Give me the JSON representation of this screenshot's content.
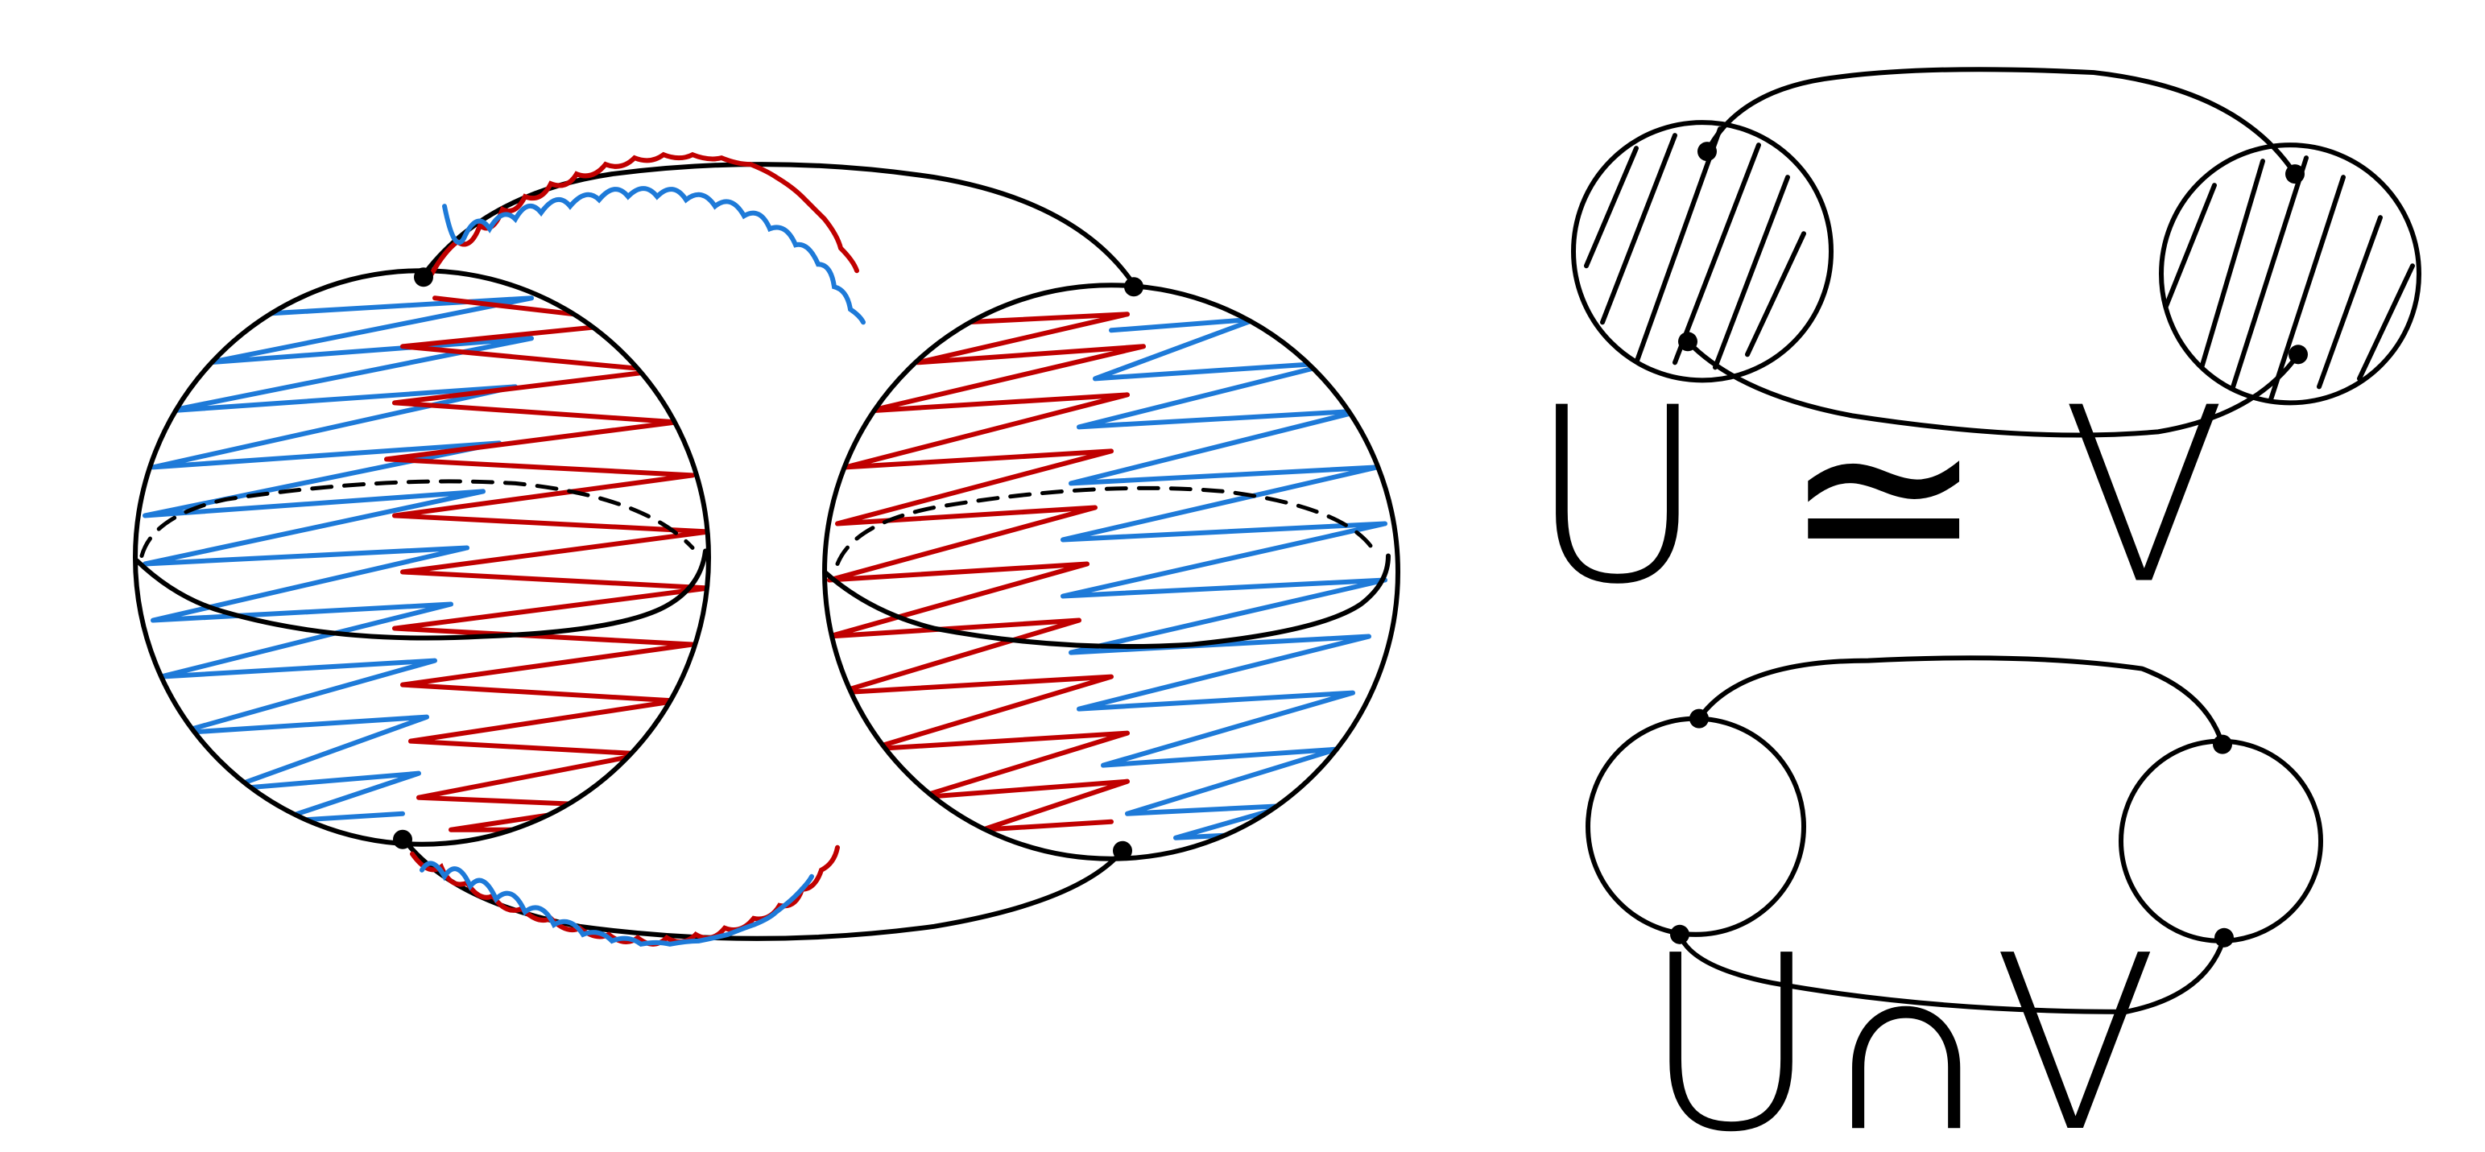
{
  "labels": {
    "homotopy_equivalence": "U ≃ V",
    "intersection": "U∩V"
  },
  "colors": {
    "ink": "#000000",
    "red": "#c00000",
    "blue": "#1e7ad8"
  }
}
